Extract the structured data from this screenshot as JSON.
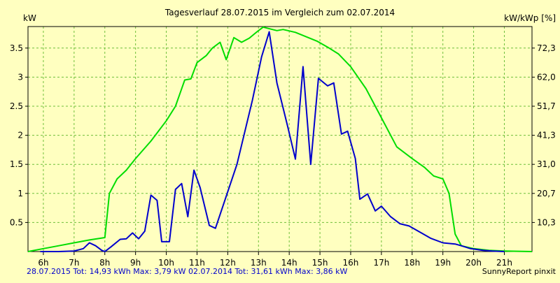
{
  "chart_data": {
    "type": "line",
    "title": "Tagesverlauf 28.07.2015 im Vergleich zum 02.07.2014",
    "ylabel_left": "kW",
    "ylabel_right": "kW/kWp [%]",
    "xlim": [
      5.5,
      21.9
    ],
    "ylim": [
      0,
      3.87
    ],
    "grid": true,
    "x_ticks": [
      6,
      7,
      8,
      9,
      10,
      11,
      12,
      13,
      14,
      15,
      16,
      17,
      18,
      19,
      20,
      21
    ],
    "x_tick_labels": [
      "6h",
      "7h",
      "8h",
      "9h",
      "10h",
      "11h",
      "12h",
      "13h",
      "14h",
      "15h",
      "16h",
      "17h",
      "18h",
      "19h",
      "20h",
      "21h"
    ],
    "y_ticks": [
      0.5,
      1,
      1.5,
      2,
      2.5,
      3,
      3.5
    ],
    "y_tick_labels": [
      "0.5",
      "1",
      "1.5",
      "2",
      "2.5",
      "3",
      "3.5"
    ],
    "y2_tick_labels": [
      "10,3",
      "20,7",
      "31,0",
      "41,3",
      "51,7",
      "62,0",
      "72,3"
    ],
    "series": [
      {
        "name": "28.07.2015",
        "color": "#0000cc",
        "points": [
          [
            5.9,
            0.0
          ],
          [
            6.5,
            0.0
          ],
          [
            7.0,
            0.01
          ],
          [
            7.3,
            0.05
          ],
          [
            7.5,
            0.15
          ],
          [
            7.7,
            0.1
          ],
          [
            7.9,
            0.02
          ],
          [
            8.0,
            0.0
          ],
          [
            8.2,
            0.08
          ],
          [
            8.5,
            0.21
          ],
          [
            8.7,
            0.22
          ],
          [
            8.9,
            0.32
          ],
          [
            9.1,
            0.22
          ],
          [
            9.3,
            0.35
          ],
          [
            9.5,
            0.97
          ],
          [
            9.7,
            0.88
          ],
          [
            9.85,
            0.17
          ],
          [
            10.1,
            0.17
          ],
          [
            10.3,
            1.07
          ],
          [
            10.5,
            1.17
          ],
          [
            10.7,
            0.6
          ],
          [
            10.9,
            1.4
          ],
          [
            11.1,
            1.1
          ],
          [
            11.4,
            0.45
          ],
          [
            11.6,
            0.4
          ],
          [
            12.3,
            1.5
          ],
          [
            12.8,
            2.6
          ],
          [
            13.1,
            3.35
          ],
          [
            13.35,
            3.78
          ],
          [
            13.6,
            2.9
          ],
          [
            13.95,
            2.15
          ],
          [
            14.2,
            1.59
          ],
          [
            14.45,
            3.18
          ],
          [
            14.7,
            1.5
          ],
          [
            14.95,
            2.98
          ],
          [
            15.25,
            2.85
          ],
          [
            15.45,
            2.9
          ],
          [
            15.7,
            2.02
          ],
          [
            15.9,
            2.07
          ],
          [
            16.15,
            1.6
          ],
          [
            16.3,
            0.9
          ],
          [
            16.55,
            0.99
          ],
          [
            16.8,
            0.7
          ],
          [
            17.0,
            0.78
          ],
          [
            17.3,
            0.6
          ],
          [
            17.6,
            0.48
          ],
          [
            17.9,
            0.44
          ],
          [
            18.3,
            0.32
          ],
          [
            18.6,
            0.23
          ],
          [
            19.0,
            0.15
          ],
          [
            19.4,
            0.13
          ],
          [
            19.6,
            0.1
          ],
          [
            19.9,
            0.05
          ],
          [
            20.3,
            0.02
          ],
          [
            20.6,
            0.01
          ],
          [
            21.0,
            0.0
          ]
        ]
      },
      {
        "name": "02.07.2014",
        "color": "#00dd00",
        "points": [
          [
            5.5,
            0.0
          ],
          [
            6.0,
            0.05
          ],
          [
            6.5,
            0.1
          ],
          [
            7.0,
            0.15
          ],
          [
            7.5,
            0.2
          ],
          [
            8.0,
            0.24
          ],
          [
            8.15,
            1.0
          ],
          [
            8.4,
            1.25
          ],
          [
            8.7,
            1.4
          ],
          [
            9.0,
            1.6
          ],
          [
            9.5,
            1.9
          ],
          [
            10.0,
            2.25
          ],
          [
            10.3,
            2.5
          ],
          [
            10.6,
            2.95
          ],
          [
            10.8,
            2.97
          ],
          [
            11.0,
            3.25
          ],
          [
            11.3,
            3.37
          ],
          [
            11.5,
            3.5
          ],
          [
            11.75,
            3.6
          ],
          [
            11.95,
            3.3
          ],
          [
            12.2,
            3.68
          ],
          [
            12.45,
            3.6
          ],
          [
            12.7,
            3.67
          ],
          [
            12.95,
            3.78
          ],
          [
            13.15,
            3.86
          ],
          [
            13.6,
            3.8
          ],
          [
            13.8,
            3.82
          ],
          [
            14.2,
            3.77
          ],
          [
            14.9,
            3.62
          ],
          [
            15.3,
            3.5
          ],
          [
            15.6,
            3.4
          ],
          [
            16.0,
            3.18
          ],
          [
            16.5,
            2.8
          ],
          [
            17.0,
            2.3
          ],
          [
            17.5,
            1.8
          ],
          [
            18.0,
            1.6
          ],
          [
            18.4,
            1.45
          ],
          [
            18.7,
            1.3
          ],
          [
            19.0,
            1.25
          ],
          [
            19.2,
            1.0
          ],
          [
            19.4,
            0.3
          ],
          [
            19.6,
            0.1
          ],
          [
            20.0,
            0.05
          ],
          [
            20.5,
            0.02
          ],
          [
            21.0,
            0.01
          ],
          [
            21.9,
            0.0
          ]
        ]
      }
    ]
  },
  "footer": {
    "series1_label": "28.07.2015 Tot: 14,93 kWh Max: 3,79 kW",
    "series2_label": "02.07.2014 Tot: 31,61 kWh Max: 3,86 kW",
    "credit": "SunnyReport pinxit"
  }
}
